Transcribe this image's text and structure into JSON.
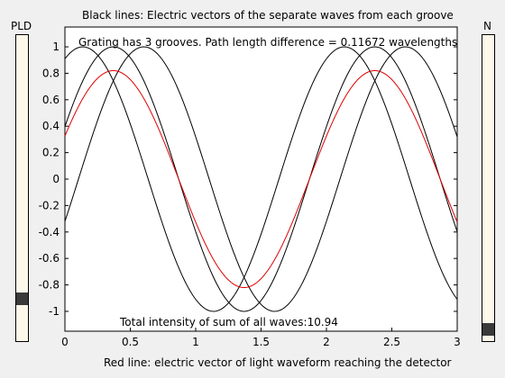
{
  "window": {
    "title": "Black lines: Electric vectors of the separate waves from each groove",
    "footer": "Red line: electric vector of light waveform reaching the detector"
  },
  "sliders": {
    "left": {
      "label": "PLD",
      "value_fraction": 0.06
    },
    "right": {
      "label": "N",
      "value_fraction": 0.0
    }
  },
  "annotations": {
    "info": "Grating has 3 grooves.    Path length difference = 0.11672 wavelengths",
    "intensity": "Total intensity of sum of all waves:10.94"
  },
  "colors": {
    "groove_wave": "#000000",
    "sum_wave": "#e00000",
    "plot_bg": "#ffffff"
  },
  "chart_data": {
    "type": "line",
    "xlim": [
      0,
      3
    ],
    "ylim": [
      -1.15,
      1.15
    ],
    "xticks": [
      "0",
      "0.5",
      "1",
      "1.5",
      "2",
      "2.5",
      "3"
    ],
    "yticks": [
      "1",
      "0.8",
      "0.6",
      "0.4",
      "0.2",
      "0",
      "-0.2",
      "-0.4",
      "-0.6",
      "-0.8",
      "-1"
    ],
    "grooves": 3,
    "path_length_difference": 0.11672,
    "wave_period": 2,
    "sum_amplitude": 0.82
  }
}
